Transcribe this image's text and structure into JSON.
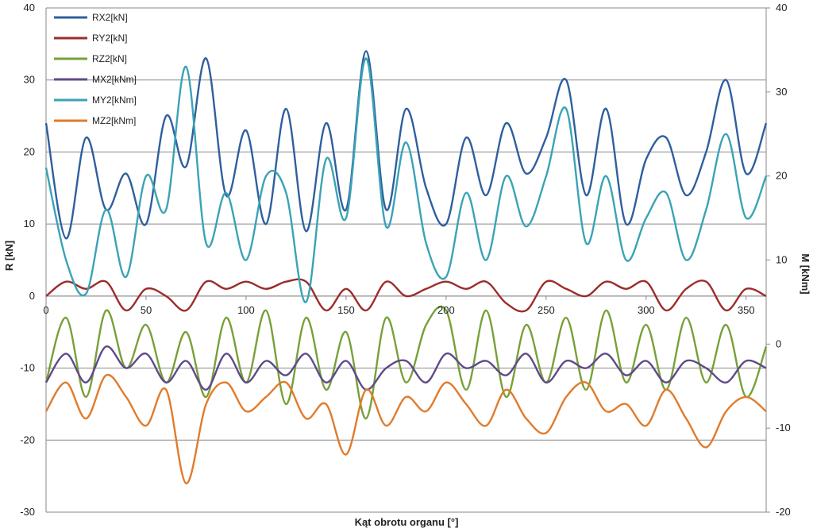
{
  "chart_data": {
    "type": "line",
    "xlabel": "Kąt obrotu organu [°]",
    "ylabel_left": "R [kN]",
    "ylabel_right": "M [kNm]",
    "xlim": [
      0,
      360
    ],
    "ylim_left": [
      -30,
      40
    ],
    "ylim_right": [
      -20,
      40
    ],
    "x_ticks": [
      "0",
      "50",
      "100",
      "150",
      "200",
      "250",
      "300",
      "350"
    ],
    "y_ticks_left": [
      "-30",
      "-20",
      "-10",
      "0",
      "10",
      "20",
      "30",
      "40"
    ],
    "y_ticks_right": [
      "-20",
      "-10",
      "0",
      "10",
      "20",
      "30",
      "40"
    ],
    "grid": "horizontal",
    "legend_position": "top-left",
    "x": [
      0,
      10,
      20,
      30,
      40,
      50,
      60,
      70,
      80,
      90,
      100,
      110,
      120,
      130,
      140,
      150,
      160,
      170,
      180,
      190,
      200,
      210,
      220,
      230,
      240,
      250,
      260,
      270,
      280,
      290,
      300,
      310,
      320,
      330,
      340,
      350,
      360
    ],
    "series": [
      {
        "name": "RX2[kN]",
        "axis": "left",
        "color": "#2e5f9e",
        "values": [
          24,
          8,
          22,
          12,
          17,
          10,
          25,
          18,
          33,
          14,
          23,
          10,
          26,
          9,
          24,
          12,
          34,
          12,
          26,
          15,
          10,
          22,
          14,
          24,
          17,
          22,
          30,
          14,
          26,
          10,
          19,
          22,
          14,
          20,
          30,
          17,
          24
        ]
      },
      {
        "name": "RY2[kN]",
        "axis": "left",
        "color": "#9b2d2a",
        "values": [
          0,
          2,
          1,
          2,
          -2,
          1,
          0,
          -2,
          2,
          1,
          2,
          1,
          2,
          2,
          -2,
          1,
          -2,
          2,
          0,
          1,
          2,
          1,
          2,
          -1,
          -2,
          2,
          1,
          0,
          2,
          1,
          2,
          -2,
          1,
          2,
          -2,
          1,
          0
        ]
      },
      {
        "name": "RZ2[kN]",
        "axis": "left",
        "color": "#77a038",
        "values": [
          -12,
          -3,
          -14,
          -2,
          -10,
          -4,
          -12,
          -5,
          -14,
          -3,
          -12,
          -2,
          -15,
          -3,
          -13,
          -5,
          -17,
          -3,
          -12,
          -4,
          -2,
          -13,
          -2,
          -14,
          -4,
          -12,
          -3,
          -13,
          -2,
          -12,
          -4,
          -13,
          -3,
          -12,
          -4,
          -14,
          -7
        ]
      },
      {
        "name": "MX2[kNm]",
        "axis": "left",
        "color": "#604a8a",
        "values": [
          -12,
          -8,
          -12,
          -7,
          -10,
          -8,
          -12,
          -9,
          -13,
          -8,
          -12,
          -9,
          -11,
          -8,
          -12,
          -9,
          -13,
          -10,
          -9,
          -12,
          -8,
          -10,
          -9,
          -11,
          -8,
          -12,
          -9,
          -10,
          -8,
          -11,
          -9,
          -12,
          -9,
          -10,
          -12,
          -9,
          -10
        ]
      },
      {
        "name": "MY2[kNm]",
        "axis": "right",
        "color": "#3aa3b5",
        "values": [
          21,
          10,
          6,
          16,
          8,
          20,
          16,
          33,
          12,
          18,
          10,
          20,
          18,
          5,
          22,
          15,
          34,
          14,
          24,
          12,
          8,
          18,
          10,
          20,
          14,
          20,
          28,
          12,
          20,
          10,
          15,
          18,
          10,
          16,
          25,
          15,
          20
        ]
      },
      {
        "name": "MZ2[kNm]",
        "axis": "left",
        "color": "#e07b2c",
        "values": [
          -16,
          -12,
          -17,
          -11,
          -14,
          -18,
          -13,
          -26,
          -15,
          -12,
          -16,
          -14,
          -12,
          -17,
          -15,
          -22,
          -13,
          -18,
          -14,
          -16,
          -12,
          -15,
          -18,
          -13,
          -17,
          -19,
          -14,
          -12,
          -16,
          -15,
          -18,
          -13,
          -17,
          -21,
          -16,
          -14,
          -16
        ]
      }
    ]
  }
}
